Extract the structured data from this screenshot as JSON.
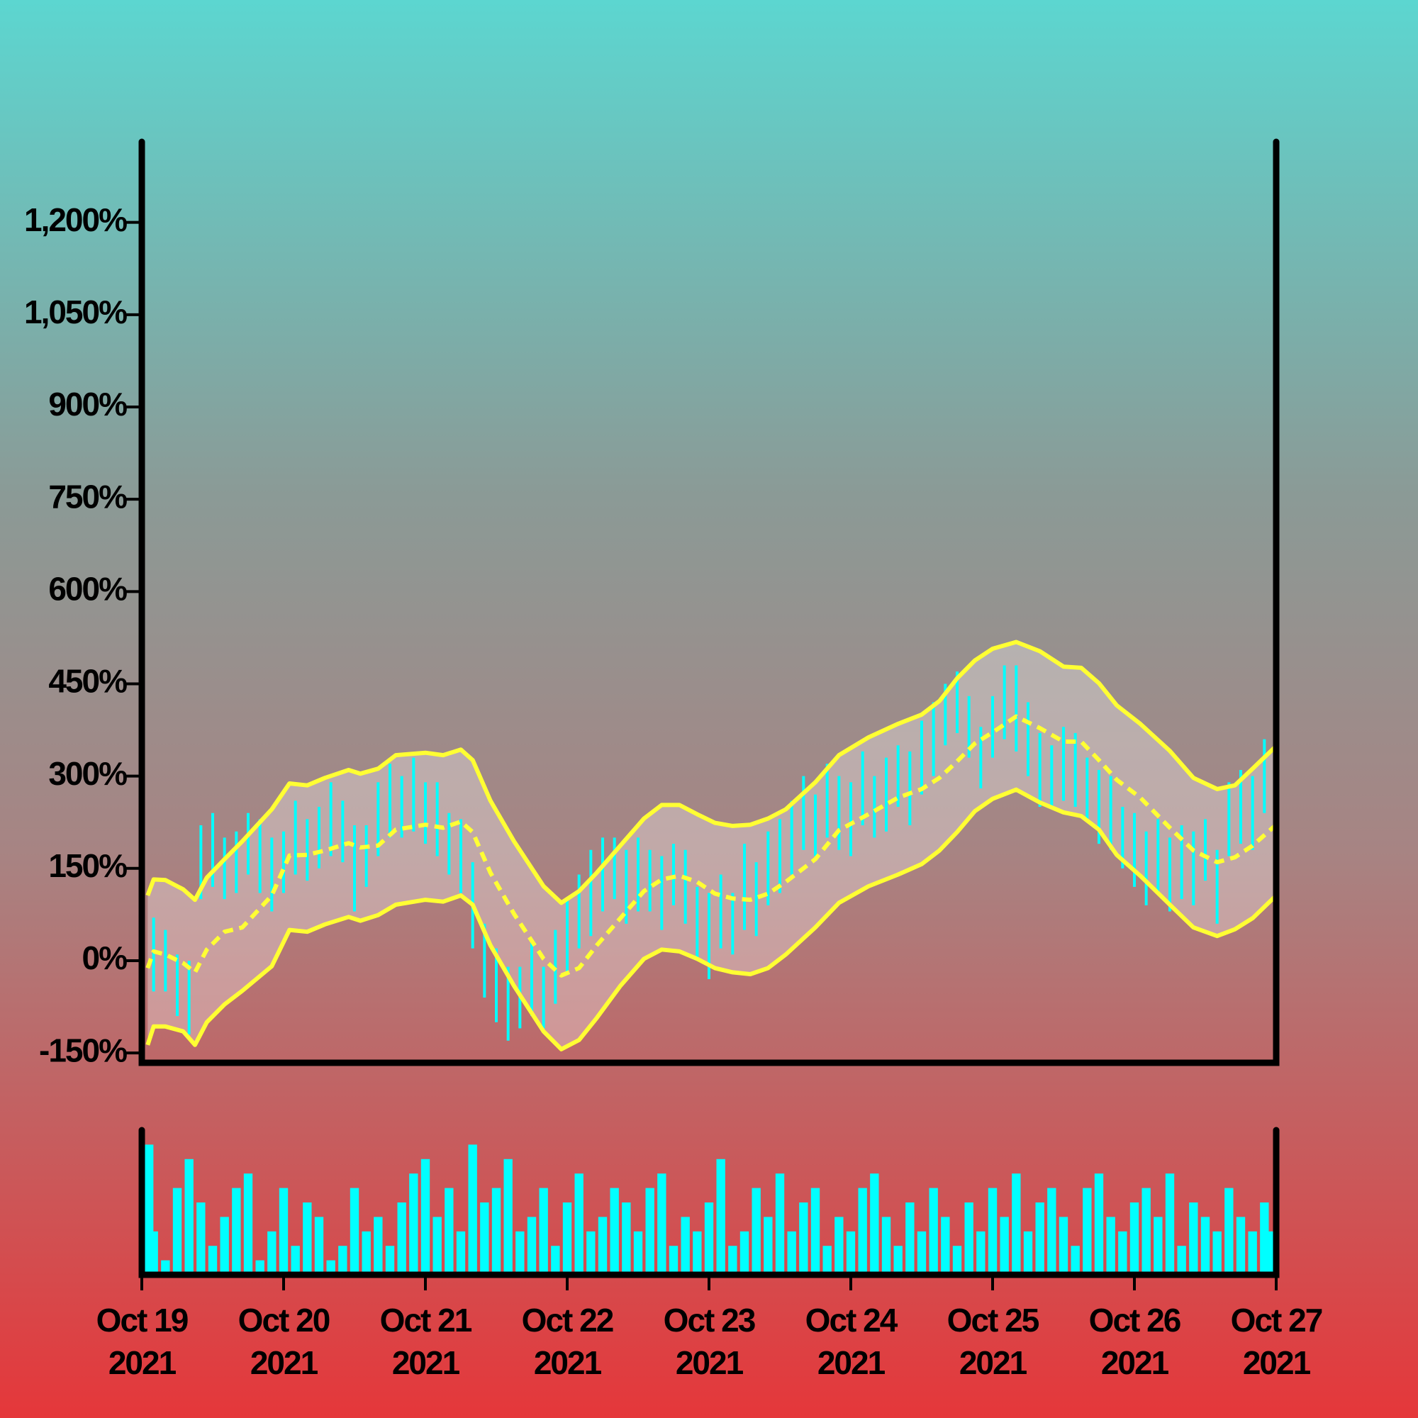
{
  "chart_data": [
    {
      "type": "ohlc",
      "color": "#00ffff",
      "x": [
        0,
        2,
        4,
        6,
        8,
        10,
        12,
        14,
        16,
        18,
        20,
        22,
        24,
        26,
        28,
        30,
        32,
        34,
        36,
        38,
        40,
        42,
        44,
        46,
        48,
        50,
        52,
        54,
        56,
        58,
        60,
        62,
        64,
        66,
        68,
        70,
        72,
        74,
        76,
        78,
        80,
        82,
        84,
        86,
        88,
        90,
        92,
        94,
        96,
        98,
        100,
        102,
        104,
        106,
        108,
        110,
        112,
        114,
        116,
        118,
        120,
        122,
        124,
        126,
        128,
        130,
        132,
        134,
        136,
        138,
        140,
        142,
        144,
        146,
        148,
        150,
        152,
        154,
        156,
        158,
        160,
        162,
        164,
        166,
        168,
        170,
        172,
        174,
        176,
        178,
        180,
        182,
        184,
        186,
        188,
        190,
        192
      ],
      "low": [
        -70,
        -50,
        -50,
        -90,
        -120,
        100,
        120,
        100,
        110,
        140,
        110,
        80,
        110,
        140,
        130,
        150,
        170,
        160,
        80,
        120,
        170,
        200,
        200,
        210,
        190,
        170,
        140,
        110,
        20,
        -60,
        -100,
        -130,
        -110,
        -90,
        -110,
        -70,
        -20,
        20,
        40,
        80,
        100,
        60,
        80,
        80,
        50,
        90,
        60,
        0,
        -30,
        20,
        10,
        50,
        40,
        90,
        110,
        140,
        180,
        170,
        200,
        180,
        170,
        220,
        200,
        210,
        250,
        220,
        270,
        300,
        350,
        370,
        330,
        280,
        330,
        360,
        340,
        300,
        250,
        250,
        260,
        250,
        230,
        190,
        180,
        150,
        120,
        90,
        110,
        80,
        100,
        90,
        130,
        60,
        170,
        190,
        180,
        240,
        260
      ],
      "high": [
        30,
        70,
        50,
        10,
        0,
        220,
        240,
        200,
        210,
        240,
        230,
        200,
        210,
        260,
        230,
        250,
        290,
        260,
        220,
        220,
        290,
        320,
        300,
        330,
        290,
        290,
        240,
        230,
        160,
        60,
        20,
        -10,
        -10,
        30,
        -10,
        50,
        100,
        140,
        180,
        200,
        200,
        180,
        200,
        180,
        170,
        190,
        180,
        120,
        110,
        140,
        110,
        190,
        160,
        210,
        230,
        260,
        300,
        270,
        320,
        300,
        290,
        340,
        300,
        330,
        350,
        340,
        390,
        420,
        450,
        470,
        430,
        380,
        430,
        480,
        480,
        420,
        370,
        350,
        380,
        370,
        330,
        310,
        300,
        250,
        240,
        210,
        230,
        200,
        220,
        210,
        230,
        180,
        290,
        310,
        300,
        360,
        380
      ],
      "bands": {
        "color": "#ffff33",
        "x": [
          1,
          2,
          4,
          7,
          9,
          11,
          14,
          17,
          22,
          25,
          28,
          31,
          35,
          37,
          40,
          43,
          48,
          51,
          54,
          56,
          59,
          63,
          68,
          71,
          74,
          77,
          81,
          85,
          88,
          91,
          94,
          97,
          100,
          103,
          106,
          109,
          114,
          118,
          123,
          128,
          132,
          135,
          138,
          141,
          144,
          148,
          152,
          156,
          159,
          162,
          165,
          169,
          174,
          178,
          182,
          185,
          188,
          192
        ],
        "upper": [
          106,
          132,
          131,
          116,
          99,
          135,
          165,
          194,
          246,
          288,
          285,
          297,
          310,
          304,
          312,
          334,
          338,
          334,
          343,
          326,
          260,
          194,
          121,
          94,
          113,
          143,
          187,
          231,
          253,
          253,
          238,
          224,
          219,
          221,
          231,
          246,
          290,
          334,
          363,
          385,
          400,
          422,
          459,
          488,
          507,
          518,
          503,
          478,
          476,
          451,
          415,
          385,
          341,
          297,
          279,
          285,
          312,
          349
        ],
        "middle": [
          -12,
          15,
          10,
          -4,
          -19,
          18,
          47,
          54,
          106,
          171,
          172,
          179,
          191,
          184,
          187,
          213,
          221,
          216,
          226,
          209,
          143,
          76,
          3,
          -24,
          -12,
          25,
          69,
          113,
          132,
          138,
          128,
          109,
          101,
          99,
          109,
          128,
          165,
          212,
          238,
          265,
          279,
          297,
          324,
          353,
          371,
          397,
          378,
          356,
          356,
          326,
          294,
          265,
          216,
          179,
          160,
          168,
          187,
          221
        ],
        "lower": [
          -137,
          -107,
          -107,
          -115,
          -137,
          -100,
          -71,
          -49,
          -9,
          50,
          47,
          59,
          71,
          65,
          74,
          91,
          99,
          96,
          106,
          91,
          25,
          -41,
          -115,
          -144,
          -129,
          -93,
          -41,
          3,
          18,
          15,
          3,
          -12,
          -19,
          -22,
          -12,
          10,
          54,
          94,
          121,
          140,
          157,
          179,
          209,
          243,
          263,
          278,
          257,
          241,
          235,
          213,
          172,
          138,
          91,
          54,
          40,
          51,
          69,
          106
        ]
      },
      "xlim": [
        0,
        192
      ],
      "ylim": [
        -166,
        1331
      ],
      "yticks": [
        {
          "value": -150,
          "label": "-150%"
        },
        {
          "value": 0,
          "label": "0%"
        },
        {
          "value": 150,
          "label": "150%"
        },
        {
          "value": 300,
          "label": "300%"
        },
        {
          "value": 450,
          "label": "450%"
        },
        {
          "value": 600,
          "label": "600%"
        },
        {
          "value": 750,
          "label": "750%"
        },
        {
          "value": 900,
          "label": "900%"
        },
        {
          "value": 1050,
          "label": "1,050%"
        },
        {
          "value": 1200,
          "label": "1,200%"
        }
      ]
    },
    {
      "type": "bar",
      "color": "#00ffff",
      "x": [
        0,
        2,
        4,
        6,
        8,
        10,
        12,
        14,
        16,
        18,
        20,
        22,
        24,
        26,
        28,
        30,
        32,
        34,
        36,
        38,
        40,
        42,
        44,
        46,
        48,
        50,
        52,
        54,
        56,
        58,
        60,
        62,
        64,
        66,
        68,
        70,
        72,
        74,
        76,
        78,
        80,
        82,
        84,
        86,
        88,
        90,
        92,
        94,
        96,
        98,
        100,
        102,
        104,
        106,
        108,
        110,
        112,
        114,
        116,
        118,
        120,
        122,
        124,
        126,
        128,
        130,
        132,
        134,
        136,
        138,
        140,
        142,
        144,
        146,
        148,
        150,
        152,
        154,
        156,
        158,
        160,
        162,
        164,
        166,
        168,
        170,
        172,
        174,
        176,
        178,
        180,
        182,
        184,
        186,
        188,
        190,
        192
      ],
      "values": [
        90,
        30,
        10,
        60,
        80,
        50,
        20,
        40,
        60,
        70,
        10,
        30,
        60,
        20,
        50,
        40,
        10,
        20,
        60,
        30,
        40,
        20,
        50,
        70,
        80,
        40,
        60,
        30,
        90,
        50,
        60,
        80,
        30,
        40,
        60,
        20,
        50,
        70,
        30,
        40,
        60,
        50,
        30,
        60,
        70,
        20,
        40,
        30,
        50,
        80,
        20,
        30,
        60,
        40,
        70,
        30,
        50,
        60,
        20,
        40,
        30,
        60,
        70,
        40,
        20,
        50,
        30,
        60,
        40,
        20,
        50,
        30,
        60,
        40,
        70,
        30,
        50,
        60,
        40,
        20,
        60,
        70,
        40,
        30,
        50,
        60,
        40,
        70,
        20,
        50,
        40,
        30,
        60,
        40,
        30,
        50,
        30
      ],
      "xlim": [
        0,
        192
      ],
      "ylim": [
        0,
        100
      ],
      "xticks": [
        {
          "value": 0,
          "label": [
            "Oct 19",
            "2021"
          ]
        },
        {
          "value": 24,
          "label": [
            "Oct 20",
            "2021"
          ]
        },
        {
          "value": 48,
          "label": [
            "Oct 21",
            "2021"
          ]
        },
        {
          "value": 72,
          "label": [
            "Oct 22",
            "2021"
          ]
        },
        {
          "value": 96,
          "label": [
            "Oct 23",
            "2021"
          ]
        },
        {
          "value": 120,
          "label": [
            "Oct 24",
            "2021"
          ]
        },
        {
          "value": 144,
          "label": [
            "Oct 25",
            "2021"
          ]
        },
        {
          "value": 168,
          "label": [
            "Oct 26",
            "2021"
          ]
        },
        {
          "value": 192,
          "label": [
            "Oct 27",
            "2021"
          ]
        }
      ]
    }
  ]
}
